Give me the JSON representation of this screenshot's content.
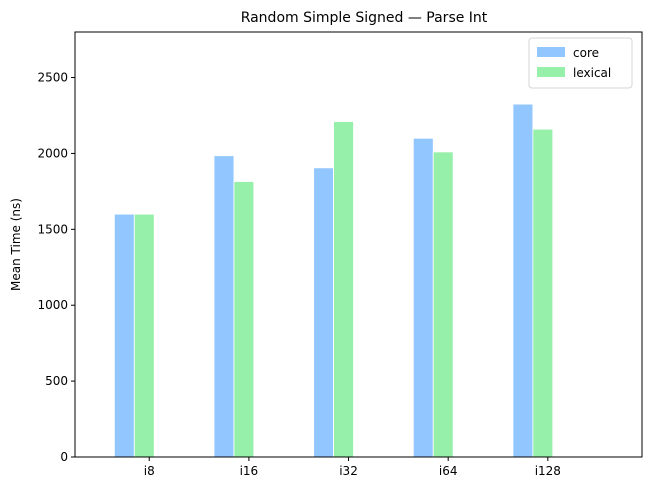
{
  "chart_data": {
    "type": "bar",
    "title": "Random Simple Signed — Parse Int",
    "xlabel": "",
    "ylabel": "Mean Time (ns)",
    "categories": [
      "i8",
      "i16",
      "i32",
      "i64",
      "i128"
    ],
    "series": [
      {
        "name": "core",
        "color": "#92c6ff",
        "values": [
          1600,
          1985,
          1905,
          2100,
          2325
        ]
      },
      {
        "name": "lexical",
        "color": "#97f0aa",
        "values": [
          1600,
          1815,
          2210,
          2010,
          2160
        ]
      }
    ],
    "ylim": [
      0,
      2800
    ],
    "yticks": [
      0,
      500,
      1000,
      1500,
      2000,
      2500
    ],
    "grid": false,
    "legend": "top-right"
  }
}
